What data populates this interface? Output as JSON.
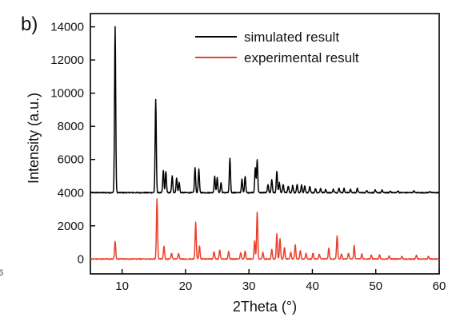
{
  "panel_label": "b)",
  "edge_glyph": "6",
  "chart_data": {
    "type": "line",
    "title": "",
    "xlabel": "2Theta (°)",
    "ylabel": "Intensity (a.u.)",
    "xlim": [
      5,
      60
    ],
    "ylim": [
      -900,
      14800
    ],
    "x_ticks": [
      10,
      20,
      30,
      40,
      50,
      60
    ],
    "y_ticks": [
      0,
      2000,
      4000,
      6000,
      8000,
      10000,
      12000,
      14000
    ],
    "grid": false,
    "legend_position": "top-right",
    "series": [
      {
        "name": "simulated result",
        "color": "#000000",
        "baseline": 4000,
        "peaks": [
          [
            8.9,
            14000
          ],
          [
            15.3,
            9600
          ],
          [
            16.5,
            5350
          ],
          [
            16.9,
            5300
          ],
          [
            17.9,
            5000
          ],
          [
            18.6,
            4900
          ],
          [
            19.0,
            4600
          ],
          [
            21.5,
            5500
          ],
          [
            22.1,
            5400
          ],
          [
            24.6,
            5000
          ],
          [
            25.0,
            4900
          ],
          [
            25.6,
            4600
          ],
          [
            27.0,
            6050
          ],
          [
            28.9,
            4800
          ],
          [
            29.4,
            5000
          ],
          [
            31.0,
            5500
          ],
          [
            31.3,
            6000
          ],
          [
            33.0,
            4500
          ],
          [
            33.6,
            4800
          ],
          [
            34.4,
            5300
          ],
          [
            34.8,
            4600
          ],
          [
            35.4,
            4500
          ],
          [
            36.2,
            4400
          ],
          [
            36.9,
            4450
          ],
          [
            37.6,
            4500
          ],
          [
            38.3,
            4450
          ],
          [
            38.8,
            4400
          ],
          [
            39.6,
            4350
          ],
          [
            40.5,
            4250
          ],
          [
            41.3,
            4250
          ],
          [
            42.1,
            4200
          ],
          [
            43.3,
            4200
          ],
          [
            44.2,
            4300
          ],
          [
            45.0,
            4250
          ],
          [
            46.0,
            4200
          ],
          [
            47.1,
            4250
          ],
          [
            48.6,
            4150
          ],
          [
            49.9,
            4150
          ],
          [
            51.0,
            4150
          ],
          [
            52.3,
            4100
          ],
          [
            53.5,
            4120
          ],
          [
            56.0,
            4100
          ],
          [
            58.5,
            4080
          ]
        ]
      },
      {
        "name": "experimental result",
        "color": "#e8402a",
        "baseline": 0,
        "peaks": [
          [
            8.9,
            1050
          ],
          [
            15.5,
            3600
          ],
          [
            16.6,
            800
          ],
          [
            17.8,
            350
          ],
          [
            18.9,
            350
          ],
          [
            21.6,
            2200
          ],
          [
            22.2,
            800
          ],
          [
            24.5,
            450
          ],
          [
            25.4,
            550
          ],
          [
            26.8,
            450
          ],
          [
            28.7,
            400
          ],
          [
            29.4,
            500
          ],
          [
            30.9,
            1100
          ],
          [
            31.3,
            2800
          ],
          [
            32.2,
            400
          ],
          [
            33.6,
            600
          ],
          [
            34.4,
            1500
          ],
          [
            34.9,
            1200
          ],
          [
            35.6,
            700
          ],
          [
            36.6,
            400
          ],
          [
            37.3,
            850
          ],
          [
            38.1,
            500
          ],
          [
            39.0,
            350
          ],
          [
            40.1,
            350
          ],
          [
            41.1,
            300
          ],
          [
            42.6,
            650
          ],
          [
            43.9,
            1400
          ],
          [
            44.6,
            300
          ],
          [
            45.7,
            350
          ],
          [
            46.6,
            800
          ],
          [
            47.8,
            300
          ],
          [
            49.3,
            250
          ],
          [
            50.6,
            250
          ],
          [
            52.1,
            200
          ],
          [
            54.1,
            180
          ],
          [
            56.4,
            200
          ],
          [
            58.3,
            150
          ]
        ]
      }
    ]
  }
}
